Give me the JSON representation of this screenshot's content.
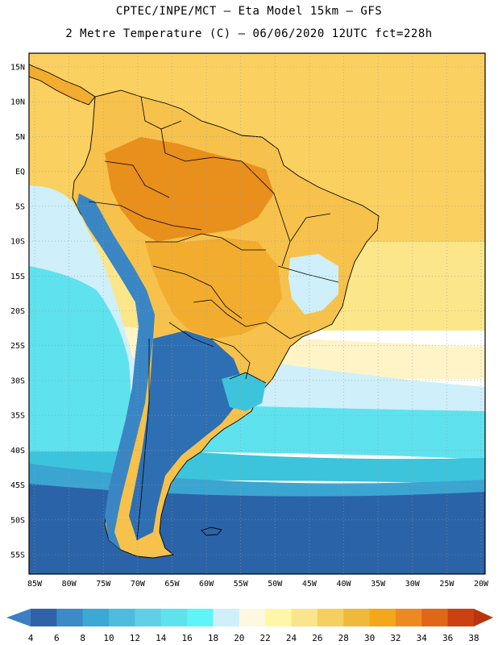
{
  "header": {
    "line1": "CPTEC/INPE/MCT –  Eta Model 15km – GFS",
    "line2": "2 Metre Temperature (C) – 06/06/2020 12UTC fct=228h"
  },
  "map": {
    "lon_ticks": [
      "85W",
      "80W",
      "75W",
      "70W",
      "65W",
      "60W",
      "55W",
      "50W",
      "45W",
      "40W",
      "35W",
      "30W",
      "25W",
      "20W"
    ],
    "lat_ticks": [
      "15N",
      "10N",
      "5N",
      "EQ",
      "5S",
      "10S",
      "15S",
      "20S",
      "25S",
      "30S",
      "35S",
      "40S",
      "45S",
      "50S",
      "55S"
    ],
    "colors": {
      "ocean_tropical": "#fad060",
      "ocean_warm": "#fbe68a",
      "ocean_mid": "#fff3c8",
      "ocean_cool": "#cfeffa",
      "ocean_cyan": "#5de2ee",
      "ocean_teal": "#3cc4dc",
      "ocean_blue": "#3ba5d2",
      "ocean_deep": "#2a63a8",
      "land_hot": "#e98f1c",
      "land_warm": "#f2ad2e",
      "land_mild": "#f6c24c",
      "andes_cold": "#3a86c4",
      "patagonia": "#2e6fb3",
      "border": "#000000",
      "grid": "#9a9a9a"
    }
  },
  "colorbar": {
    "labels": [
      "4",
      "6",
      "8",
      "10",
      "12",
      "14",
      "16",
      "18",
      "20",
      "22",
      "24",
      "26",
      "28",
      "30",
      "32",
      "34",
      "36",
      "38"
    ],
    "colors": [
      "#3d7fc2",
      "#2e63a8",
      "#3b8cc6",
      "#3ea8d4",
      "#4ebcde",
      "#5fd0e6",
      "#5ee2ee",
      "#5ff5f8",
      "#cfeffa",
      "#fff8e0",
      "#fff7a8",
      "#fbe58a",
      "#f5d060",
      "#efba3c",
      "#f3a71a",
      "#ec8a22",
      "#e06618",
      "#cc4012",
      "#b93410"
    ]
  }
}
